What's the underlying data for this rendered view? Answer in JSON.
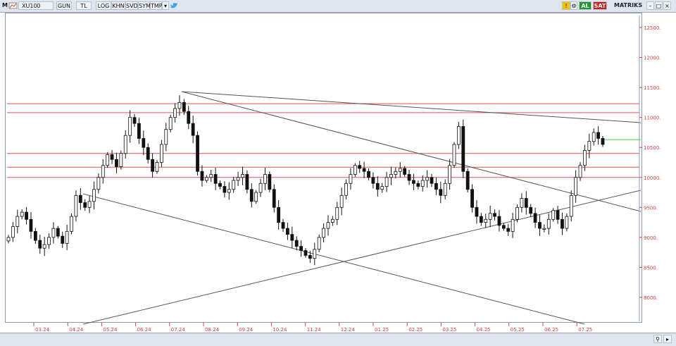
{
  "toolbar": {
    "menu_letter": "M",
    "symbol": "XU100",
    "buttons": [
      "GUN",
      "TL",
      "LOG",
      "KHN",
      "SVD",
      "SYM",
      "TMP"
    ],
    "buy_label": "AL",
    "sell_label": "SAT",
    "matrix_label": "MATRIKS"
  },
  "colors": {
    "resistance_lines": "#e05050",
    "trend_lines": "#555555",
    "candles": "#111111",
    "axis_text": "#d04040",
    "current_level": "#44cc44"
  },
  "chart_data": {
    "type": "candlestick",
    "symbol": "XU100",
    "x_ticks": [
      "03.24",
      "04.24",
      "05.24",
      "06.24",
      "07.24",
      "08.24",
      "09.24",
      "10.24",
      "11.24",
      "12.24",
      "01.25",
      "02.25",
      "03.25",
      "04.25",
      "05.25",
      "06.25",
      "07.25"
    ],
    "y_ticks": [
      8000,
      8500,
      9000,
      9500,
      10000,
      10500,
      11000,
      11500,
      12000,
      12500
    ],
    "ylim": [
      7600,
      12700
    ],
    "horizontal_levels": [
      11230,
      11080,
      10400,
      10170,
      10000
    ],
    "current_level": 10630,
    "closes": [
      9000,
      9180,
      9350,
      9420,
      9300,
      9100,
      8950,
      8820,
      8880,
      9000,
      9150,
      9020,
      8900,
      9100,
      9350,
      9700,
      9580,
      9500,
      9600,
      9800,
      10000,
      10200,
      10380,
      10300,
      10180,
      10400,
      10700,
      11000,
      10900,
      10650,
      10500,
      10300,
      10100,
      10250,
      10550,
      10800,
      11000,
      11150,
      11250,
      11100,
      10900,
      10700,
      10100,
      9950,
      10000,
      10050,
      9900,
      9850,
      9750,
      9800,
      9950,
      10000,
      10050,
      9800,
      9600,
      9750,
      9900,
      10050,
      9800,
      9500,
      9250,
      9150,
      9050,
      8950,
      8850,
      8780,
      8700,
      8650,
      8800,
      9000,
      9150,
      9250,
      9300,
      9500,
      9700,
      9900,
      10050,
      10200,
      10150,
      10100,
      10000,
      9900,
      9800,
      9850,
      10000,
      10050,
      10100,
      10150,
      10050,
      9950,
      9900,
      9850,
      9950,
      10000,
      9900,
      9800,
      9700,
      9900,
      10200,
      10550,
      10850,
      10100,
      9800,
      9500,
      9350,
      9250,
      9300,
      9400,
      9350,
      9200,
      9150,
      9100,
      9300,
      9500,
      9650,
      9500,
      9400,
      9250,
      9150,
      9150,
      9300,
      9450,
      9300,
      9150,
      9350,
      9700,
      10000,
      10200,
      10450,
      10600,
      10750,
      10650,
      10550
    ]
  }
}
